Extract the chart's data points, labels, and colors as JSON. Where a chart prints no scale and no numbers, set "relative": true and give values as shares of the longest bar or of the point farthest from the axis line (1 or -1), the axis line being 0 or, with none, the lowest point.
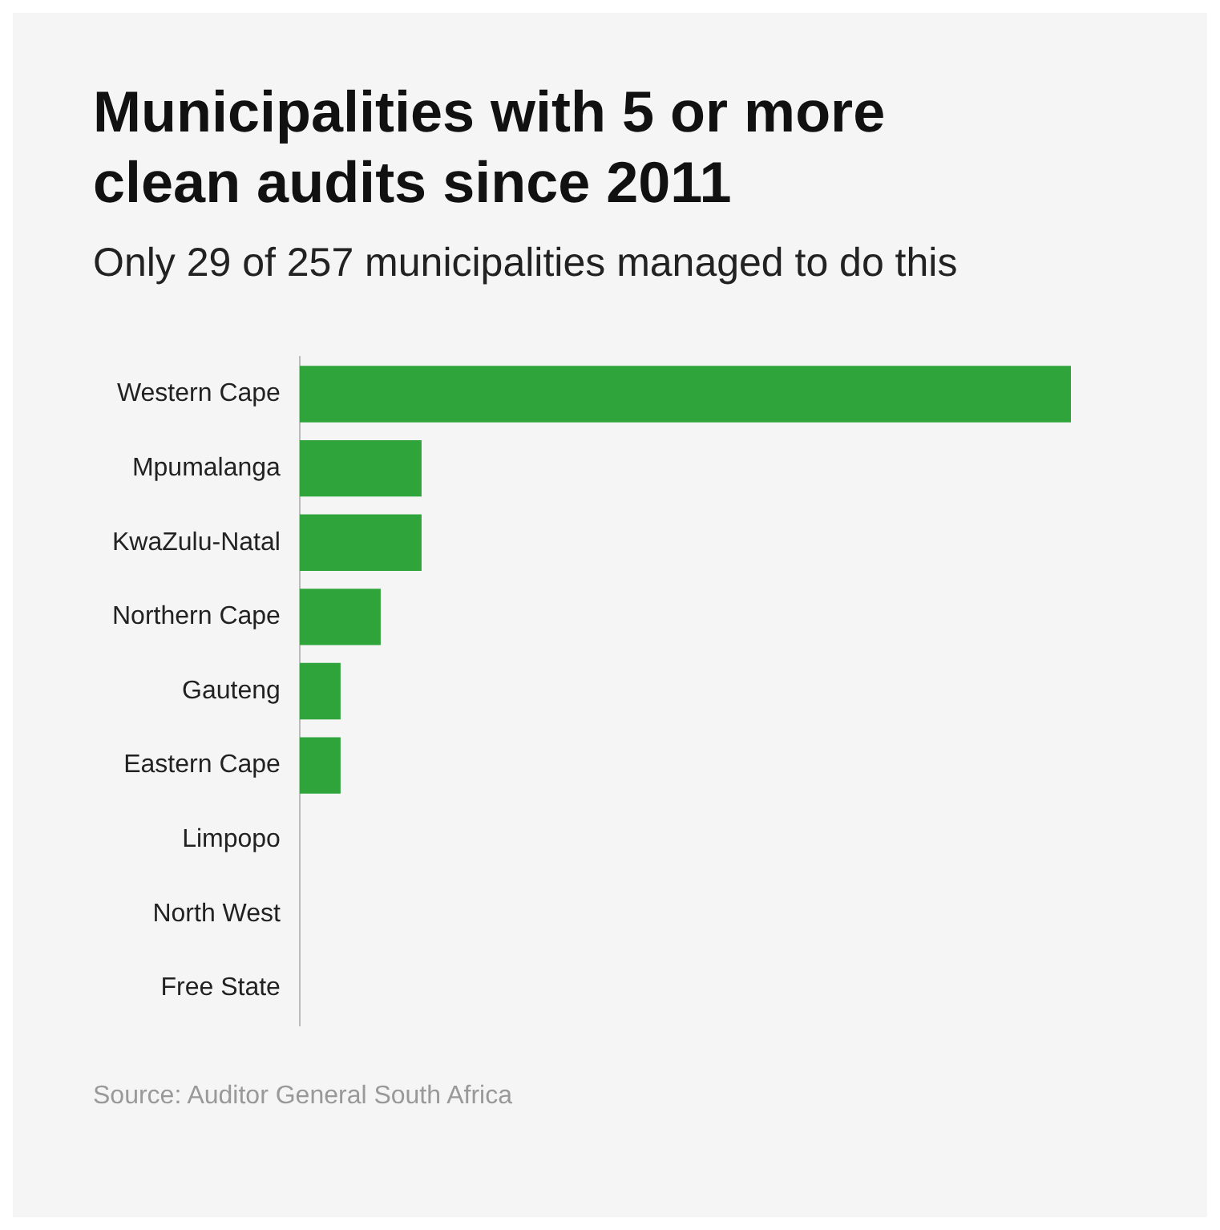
{
  "chart_data": {
    "type": "bar",
    "orientation": "horizontal",
    "relative": true,
    "title": "Municipalities with 5 or more clean audits since 2011",
    "subtitle": "Only 29 of 257 municipalities managed to do this",
    "categories": [
      "Western Cape",
      "Mpumalanga",
      "KwaZulu-Natal",
      "Northern Cape",
      "Gauteng",
      "Eastern Cape",
      "Limpopo",
      "North West",
      "Free State"
    ],
    "values": [
      1,
      0.158,
      0.158,
      0.105,
      0.053,
      0.053,
      0,
      0,
      0
    ],
    "color": "#2ea43a",
    "annotations": [
      "Source: Auditor General South Africa"
    ]
  }
}
